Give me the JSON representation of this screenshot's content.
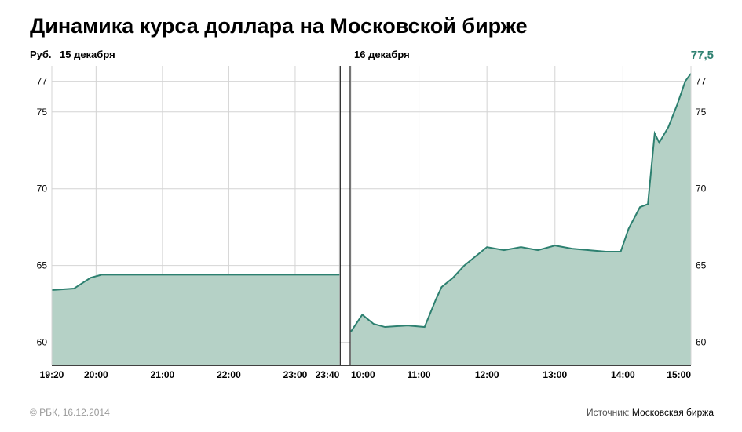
{
  "title": "Динамика курса доллара на Московской бирже",
  "y_axis_label": "Руб.",
  "day1_label": "15 декабря",
  "day2_label": "16 декабря",
  "final_value_label": "77,5",
  "credit": "© РБК, 16.12.2014",
  "source_prefix": "Источник:",
  "source_name": "Московская биржа",
  "chart": {
    "type": "area",
    "fill_color": "#b5d1c6",
    "stroke_color": "#2d8070",
    "stroke_width": 2,
    "background_color": "#ffffff",
    "grid_color": "#d4d4d4",
    "axis_color": "#000000",
    "title_fontsize": 27,
    "label_fontsize": 13,
    "tick_fontsize": 12,
    "final_value_color": "#2d8070",
    "y_axis": {
      "min": 58.5,
      "max": 78,
      "ticks_left": [
        60,
        65,
        70,
        75,
        77
      ],
      "ticks_right": [
        60,
        65,
        70,
        75,
        77
      ]
    },
    "x_axis": {
      "segment1_start": 1160,
      "segment1_end": 1420,
      "segment2_start": 600,
      "segment2_end": 900,
      "segment1_fraction": 0.45,
      "gap_fraction": 0.018,
      "segment1_ticks": [
        {
          "t": 1160,
          "label": "19:20"
        },
        {
          "t": 1200,
          "label": "20:00"
        },
        {
          "t": 1260,
          "label": "21:00"
        },
        {
          "t": 1320,
          "label": "22:00"
        },
        {
          "t": 1380,
          "label": "23:00"
        },
        {
          "t": 1420,
          "label": "23:40"
        }
      ],
      "segment2_ticks": [
        {
          "t": 600,
          "label": "10:00"
        },
        {
          "t": 660,
          "label": "11:00"
        },
        {
          "t": 720,
          "label": "12:00"
        },
        {
          "t": 780,
          "label": "13:00"
        },
        {
          "t": 840,
          "label": "14:00"
        },
        {
          "t": 900,
          "label": "15:00"
        }
      ]
    },
    "series_segment1": [
      {
        "t": 1160,
        "v": 63.4
      },
      {
        "t": 1180,
        "v": 63.5
      },
      {
        "t": 1195,
        "v": 64.2
      },
      {
        "t": 1205,
        "v": 64.4
      },
      {
        "t": 1230,
        "v": 64.4
      },
      {
        "t": 1260,
        "v": 64.4
      },
      {
        "t": 1320,
        "v": 64.4
      },
      {
        "t": 1380,
        "v": 64.4
      },
      {
        "t": 1420,
        "v": 64.4
      }
    ],
    "series_segment2": [
      {
        "t": 600,
        "v": 60.7
      },
      {
        "t": 610,
        "v": 61.8
      },
      {
        "t": 620,
        "v": 61.2
      },
      {
        "t": 630,
        "v": 61.0
      },
      {
        "t": 650,
        "v": 61.1
      },
      {
        "t": 665,
        "v": 61.0
      },
      {
        "t": 675,
        "v": 62.8
      },
      {
        "t": 680,
        "v": 63.6
      },
      {
        "t": 690,
        "v": 64.2
      },
      {
        "t": 700,
        "v": 65.0
      },
      {
        "t": 710,
        "v": 65.6
      },
      {
        "t": 720,
        "v": 66.2
      },
      {
        "t": 735,
        "v": 66.0
      },
      {
        "t": 750,
        "v": 66.2
      },
      {
        "t": 765,
        "v": 66.0
      },
      {
        "t": 780,
        "v": 66.3
      },
      {
        "t": 795,
        "v": 66.1
      },
      {
        "t": 810,
        "v": 66.0
      },
      {
        "t": 825,
        "v": 65.9
      },
      {
        "t": 838,
        "v": 65.9
      },
      {
        "t": 845,
        "v": 67.4
      },
      {
        "t": 855,
        "v": 68.8
      },
      {
        "t": 862,
        "v": 69.0
      },
      {
        "t": 868,
        "v": 73.6
      },
      {
        "t": 872,
        "v": 73.0
      },
      {
        "t": 880,
        "v": 74.0
      },
      {
        "t": 888,
        "v": 75.5
      },
      {
        "t": 895,
        "v": 77.0
      },
      {
        "t": 900,
        "v": 77.5
      }
    ]
  }
}
